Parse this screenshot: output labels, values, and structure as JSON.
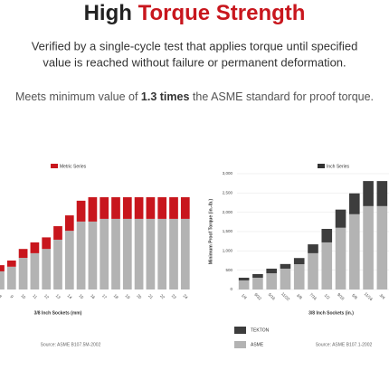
{
  "header": {
    "title_plain": "High",
    "title_accent": "Torque Strength",
    "description_lines": [
      "Verified by a single-cycle test that applies torque until specified",
      "value is reached without failure or permanent deformation."
    ],
    "note_before": "Meets minimum value of",
    "note_bold": "1.3 times",
    "note_after": "the ASME standard for proof torque."
  },
  "chart_data": [
    {
      "type": "bar",
      "stacked": true,
      "title": "Metric Series",
      "xlabel": "3/8 Inch Sockets (mm)",
      "source": "Source: ASME B107.5M-2002",
      "categories": [
        "8",
        "9",
        "10",
        "11",
        "12",
        "13",
        "14",
        "15",
        "16",
        "17",
        "18",
        "19",
        "20",
        "21",
        "22",
        "23",
        "24"
      ],
      "ylim": [
        0,
        3000
      ],
      "series": [
        {
          "color": "#b3b3b3",
          "values": [
            470,
            590,
            820,
            940,
            1050,
            1290,
            1520,
            1760,
            1760,
            1830,
            1830,
            1830,
            1830,
            1830,
            1830,
            1830,
            1830
          ]
        },
        {
          "color": "#c8161d",
          "values": [
            160,
            160,
            230,
            280,
            300,
            350,
            400,
            540,
            630,
            560,
            560,
            560,
            560,
            560,
            560,
            560,
            560
          ]
        }
      ]
    },
    {
      "type": "bar",
      "stacked": true,
      "title": "Inch Series",
      "ylabel": "Minimum Proof Torque (in.-lb.)",
      "xlabel": "3/8 Inch Sockets (in.)",
      "source": "Source: ASME B107.1-2002",
      "categories": [
        "1/4",
        "9/32",
        "5/16",
        "11/32",
        "3/8",
        "7/16",
        "1/2",
        "9/16",
        "5/8",
        "11/16",
        "3/4"
      ],
      "ylim": [
        0,
        3000
      ],
      "yticks": [
        0,
        500,
        {
          "value": 1000,
          "label": "1,000"
        },
        {
          "value": 1500,
          "label": "1,500"
        },
        {
          "value": 2000,
          "label": "2,000"
        },
        {
          "value": 2500,
          "label": "2,500"
        },
        {
          "value": 3000,
          "label": "3,000"
        }
      ],
      "grid": true,
      "series": [
        {
          "name": "ASME",
          "color": "#b3b3b3",
          "values": [
            235,
            305,
            420,
            540,
            655,
            940,
            1220,
            1600,
            1950,
            2160,
            2160
          ]
        },
        {
          "name": "TEKTON",
          "color": "#3d3d3d",
          "values": [
            70,
            95,
            120,
            120,
            160,
            230,
            350,
            470,
            540,
            650,
            650
          ]
        }
      ]
    }
  ]
}
